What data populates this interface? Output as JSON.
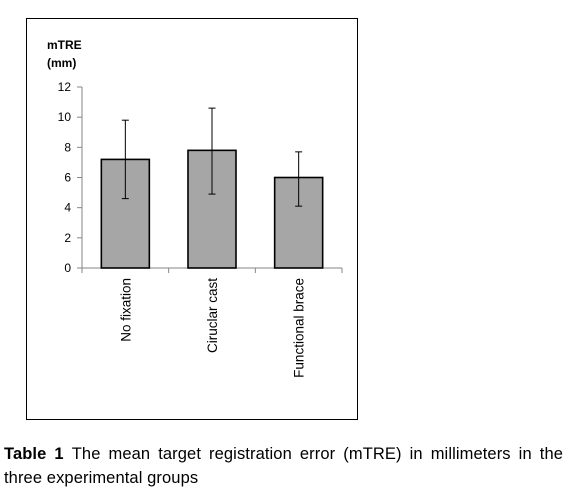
{
  "chart_data": {
    "type": "bar",
    "title": "",
    "ylabel": "mTRE (mm)",
    "ylabel_lines": [
      "mTRE",
      "(mm)"
    ],
    "xlabel": "",
    "categories": [
      "No fixation",
      "Ciruclar cast",
      "Functional brace"
    ],
    "values": [
      7.2,
      7.8,
      6.0
    ],
    "error_low": [
      4.6,
      4.9,
      4.1
    ],
    "error_high": [
      9.8,
      10.6,
      7.7
    ],
    "ylim": [
      0,
      12
    ],
    "yticks": [
      0,
      2,
      4,
      6,
      8,
      10,
      12
    ],
    "bar_color": "#a6a6a6",
    "grid": false,
    "legend": "none"
  },
  "caption": {
    "label": "Table 1",
    "text": "The mean target registration error (mTRE) in millimeters in the three experimental groups"
  }
}
